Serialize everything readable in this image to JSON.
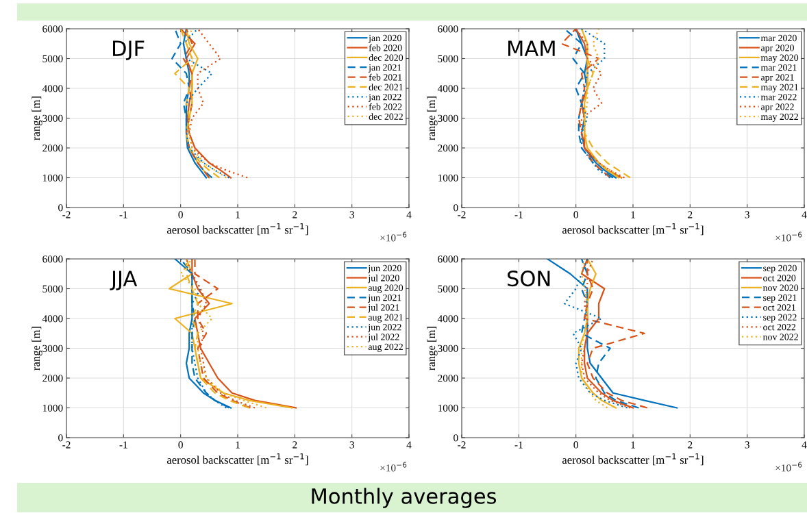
{
  "chart_data": [
    {
      "type": "line",
      "xlabel": "aerosol backscatter [m$^{−1}$ sr$^{−1}$]",
      "ylabel": "range [m]",
      "annotations": [
        "DJF",
        "×10$^{−6}$"
      ],
      "xlim": [
        -2,
        4
      ],
      "xticks": [
        -2,
        -1,
        0,
        1,
        2,
        3,
        4
      ],
      "ylim": [
        0,
        6000
      ],
      "yticks": [
        0,
        1000,
        2000,
        3000,
        4000,
        5000,
        6000
      ],
      "grid": true,
      "legend": "top right",
      "series": [
        {
          "name": "jan 2020",
          "color": "#0072bd",
          "line_style": "solid",
          "x": [
            0.45,
            0.35,
            0.25,
            0.12,
            0.1,
            0.1,
            0.1,
            0.15,
            0.15,
            0.1,
            0.05,
            0.1
          ],
          "values": [
            1000,
            1250,
            1500,
            2000,
            2500,
            3000,
            3500,
            4000,
            4500,
            5000,
            5500,
            6000
          ]
        },
        {
          "name": "feb 2020",
          "color": "#d95319",
          "line_style": "solid",
          "x": [
            0.88,
            0.7,
            0.5,
            0.25,
            0.15,
            0.12,
            0.15,
            0.2,
            0.2,
            0.1,
            0.25,
            0.0
          ],
          "values": [
            1000,
            1250,
            1500,
            2000,
            2500,
            3000,
            3500,
            4000,
            4500,
            5000,
            5500,
            6000
          ]
        },
        {
          "name": "dec 2020",
          "color": "#edb120",
          "line_style": "solid",
          "x": [
            0.5,
            0.4,
            0.3,
            0.15,
            0.1,
            0.15,
            0.2,
            0.2,
            0.2,
            0.3,
            0.15,
            0.1
          ],
          "values": [
            1000,
            1250,
            1500,
            2000,
            2500,
            3000,
            3500,
            4000,
            4500,
            5000,
            5500,
            6000
          ]
        },
        {
          "name": "jan 2021",
          "color": "#0072bd",
          "line_style": "dashed",
          "x": [
            0.55,
            0.4,
            0.3,
            0.15,
            0.1,
            0.1,
            0.05,
            0.15,
            0.1,
            -0.15,
            0.0,
            -0.1
          ],
          "values": [
            1000,
            1250,
            1500,
            2000,
            2500,
            3000,
            3500,
            4000,
            4500,
            5000,
            5500,
            6000
          ]
        },
        {
          "name": "feb 2021",
          "color": "#d95319",
          "line_style": "dashed",
          "x": [
            0.5,
            0.4,
            0.3,
            0.15,
            0.1,
            0.15,
            0.2,
            0.15,
            0.2,
            0.05,
            0.2,
            0.1
          ],
          "values": [
            1000,
            1250,
            1500,
            2000,
            2500,
            3000,
            3500,
            4000,
            4500,
            5000,
            5500,
            6000
          ]
        },
        {
          "name": "dec 2021",
          "color": "#edb120",
          "line_style": "dashed",
          "x": [
            0.68,
            0.5,
            0.35,
            0.15,
            0.1,
            0.15,
            0.1,
            0.15,
            -0.1,
            0.2,
            0.1,
            0.0
          ],
          "values": [
            1000,
            1250,
            1500,
            2000,
            2500,
            3000,
            3500,
            4000,
            4500,
            5000,
            5500,
            6000
          ]
        },
        {
          "name": "jan 2022",
          "color": "#0072bd",
          "line_style": "dotted",
          "x": [
            0.85,
            0.6,
            0.4,
            0.15,
            0.1,
            0.1,
            0.1,
            0.3,
            0.55,
            0.1,
            0.05,
            0.3
          ],
          "values": [
            1000,
            1250,
            1500,
            2000,
            2500,
            3000,
            3500,
            4000,
            4500,
            5000,
            5500,
            6000
          ]
        },
        {
          "name": "feb 2022",
          "color": "#d95319",
          "line_style": "dotted",
          "x": [
            1.17,
            0.8,
            0.5,
            0.2,
            0.15,
            0.2,
            0.4,
            0.3,
            0.3,
            0.7,
            0.5,
            0.3
          ],
          "values": [
            1000,
            1250,
            1500,
            2000,
            2500,
            3000,
            3500,
            4000,
            4500,
            5000,
            5500,
            6000
          ]
        },
        {
          "name": "dec 2022",
          "color": "#edb120",
          "line_style": "dotted",
          "x": [
            0.8,
            0.6,
            0.4,
            0.2,
            0.15,
            0.15,
            0.2,
            0.2,
            0.2,
            0.2,
            0.1,
            0.2
          ],
          "values": [
            1000,
            1250,
            1500,
            2000,
            2500,
            3000,
            3500,
            4000,
            4500,
            5000,
            5500,
            6000
          ]
        }
      ]
    },
    {
      "type": "line",
      "xlabel": "aerosol backscatter [m$^{−1}$ sr$^{−1}$]",
      "ylabel": "range [m]",
      "annotations": [
        "MAM",
        "×10$^{−6}$"
      ],
      "xlim": [
        -2,
        4
      ],
      "xticks": [
        -2,
        -1,
        0,
        1,
        2,
        3,
        4
      ],
      "ylim": [
        0,
        6000
      ],
      "yticks": [
        0,
        1000,
        2000,
        3000,
        4000,
        5000,
        6000
      ],
      "grid": true,
      "legend": "top right",
      "series": [
        {
          "name": "mar 2020",
          "color": "#0072bd",
          "line_style": "solid",
          "x": [
            0.7,
            0.5,
            0.35,
            0.15,
            0.1,
            0.15,
            0.1,
            0.2,
            0.15,
            0.2,
            0.1,
            0.0
          ],
          "values": [
            1000,
            1250,
            1500,
            2000,
            2500,
            3000,
            3500,
            4000,
            4500,
            5000,
            5500,
            6000
          ]
        },
        {
          "name": "apr 2020",
          "color": "#d95319",
          "line_style": "solid",
          "x": [
            0.8,
            0.55,
            0.4,
            0.15,
            0.15,
            0.15,
            0.1,
            0.2,
            0.2,
            0.2,
            0.15,
            0.0
          ],
          "values": [
            1000,
            1250,
            1500,
            2000,
            2500,
            3000,
            3500,
            4000,
            4500,
            5000,
            5500,
            6000
          ]
        },
        {
          "name": "may 2020",
          "color": "#edb120",
          "line_style": "solid",
          "x": [
            0.75,
            0.55,
            0.4,
            0.2,
            0.15,
            0.15,
            0.15,
            0.2,
            0.2,
            0.2,
            0.2,
            0.1
          ],
          "values": [
            1000,
            1250,
            1500,
            2000,
            2500,
            3000,
            3500,
            4000,
            4500,
            5000,
            5500,
            6000
          ]
        },
        {
          "name": "mar 2021",
          "color": "#0072bd",
          "line_style": "dashed",
          "x": [
            0.65,
            0.45,
            0.3,
            0.1,
            0.05,
            0.05,
            0.1,
            0.0,
            0.15,
            -0.05,
            0.1,
            -0.2
          ],
          "values": [
            1000,
            1250,
            1500,
            2000,
            2500,
            3000,
            3500,
            4000,
            4500,
            5000,
            5500,
            6000
          ]
        },
        {
          "name": "apr 2021",
          "color": "#d95319",
          "line_style": "dashed",
          "x": [
            0.6,
            0.45,
            0.3,
            0.15,
            0.1,
            0.05,
            0.1,
            0.15,
            0.1,
            0.4,
            -0.25,
            0.0
          ],
          "values": [
            1000,
            1250,
            1500,
            2000,
            2500,
            3000,
            3500,
            4000,
            4500,
            5000,
            5500,
            6000
          ]
        },
        {
          "name": "may 2021",
          "color": "#edb120",
          "line_style": "dashed",
          "x": [
            0.95,
            0.75,
            0.55,
            0.3,
            0.15,
            0.15,
            0.15,
            0.2,
            0.3,
            0.2,
            0.2,
            0.1
          ],
          "values": [
            1000,
            1250,
            1500,
            2000,
            2500,
            3000,
            3500,
            4000,
            4500,
            5000,
            5500,
            6000
          ]
        },
        {
          "name": "mar 2022",
          "color": "#0072bd",
          "line_style": "dotted",
          "x": [
            0.6,
            0.4,
            0.3,
            0.1,
            0.1,
            0.2,
            0.1,
            0.15,
            0.2,
            0.5,
            0.5,
            0.1
          ],
          "values": [
            1000,
            1250,
            1500,
            2000,
            2500,
            3000,
            3500,
            4000,
            4500,
            5000,
            5500,
            6000
          ]
        },
        {
          "name": "apr 2022",
          "color": "#d95319",
          "line_style": "dotted",
          "x": [
            0.85,
            0.6,
            0.4,
            0.15,
            0.1,
            0.1,
            0.45,
            0.3,
            0.45,
            0.2,
            0.2,
            0.0
          ],
          "values": [
            1000,
            1250,
            1500,
            2000,
            2500,
            3000,
            3500,
            4000,
            4500,
            5000,
            5500,
            6000
          ]
        },
        {
          "name": "may 2022",
          "color": "#edb120",
          "line_style": "dotted",
          "x": [
            0.8,
            0.6,
            0.4,
            0.2,
            0.15,
            0.15,
            0.2,
            0.2,
            0.3,
            0.4,
            0.3,
            0.4
          ],
          "values": [
            1000,
            1250,
            1500,
            2000,
            2500,
            3000,
            3500,
            4000,
            4500,
            5000,
            5500,
            6000
          ]
        }
      ]
    },
    {
      "type": "line",
      "xlabel": "aerosol backscatter [m$^{−1}$ sr$^{−1}$]",
      "ylabel": "range [m]",
      "annotations": [
        "JJA",
        "×10$^{−6}$"
      ],
      "xlim": [
        -2,
        4
      ],
      "xticks": [
        -2,
        -1,
        0,
        1,
        2,
        3,
        4
      ],
      "ylim": [
        0,
        6000
      ],
      "yticks": [
        0,
        1000,
        2000,
        3000,
        4000,
        5000,
        6000
      ],
      "grid": true,
      "legend": "top right",
      "series": [
        {
          "name": "jun 2020",
          "color": "#0072bd",
          "line_style": "solid",
          "x": [
            0.88,
            0.6,
            0.4,
            0.15,
            0.1,
            0.15,
            0.15,
            0.2,
            0.2,
            0.2,
            0.2,
            -0.1
          ],
          "values": [
            1000,
            1250,
            1500,
            2000,
            2500,
            3000,
            3500,
            4000,
            4500,
            5000,
            5500,
            6000
          ]
        },
        {
          "name": "jul 2020",
          "color": "#d95319",
          "line_style": "solid",
          "x": [
            2.02,
            1.3,
            0.9,
            0.65,
            0.5,
            0.35,
            0.3,
            0.25,
            0.5,
            0.3,
            0.2,
            0.2
          ],
          "values": [
            1000,
            1250,
            1500,
            2000,
            2500,
            3000,
            3500,
            4000,
            4500,
            5000,
            5500,
            6000
          ]
        },
        {
          "name": "aug 2020",
          "color": "#edb120",
          "line_style": "solid",
          "x": [
            1.95,
            1.2,
            0.75,
            0.35,
            0.3,
            0.25,
            0.2,
            -0.1,
            0.9,
            -0.2,
            0.2,
            0.1
          ],
          "values": [
            1000,
            1250,
            1500,
            2000,
            2500,
            3000,
            3500,
            4000,
            4500,
            5000,
            5500,
            6000
          ]
        },
        {
          "name": "jun 2021",
          "color": "#0072bd",
          "line_style": "dashed",
          "x": [
            0.85,
            0.6,
            0.45,
            0.25,
            0.2,
            0.2,
            0.2,
            0.25,
            0.2,
            0.2,
            0.2,
            0.0
          ],
          "values": [
            1000,
            1250,
            1500,
            2000,
            2500,
            3000,
            3500,
            4000,
            4500,
            5000,
            5500,
            6000
          ]
        },
        {
          "name": "jul 2021",
          "color": "#d95319",
          "line_style": "dashed",
          "x": [
            1.22,
            0.9,
            0.65,
            0.4,
            0.35,
            0.3,
            0.45,
            0.3,
            0.3,
            0.65,
            0.25,
            0.25
          ],
          "values": [
            1000,
            1250,
            1500,
            2000,
            2500,
            3000,
            3500,
            4000,
            4500,
            5000,
            5500,
            6000
          ]
        },
        {
          "name": "aug 2021",
          "color": "#edb120",
          "line_style": "dashed",
          "x": [
            1.2,
            0.85,
            0.6,
            0.35,
            0.3,
            0.25,
            0.3,
            0.2,
            0.3,
            0.2,
            0.1,
            0.1
          ],
          "values": [
            1000,
            1250,
            1500,
            2000,
            2500,
            3000,
            3500,
            4000,
            4500,
            5000,
            5500,
            6000
          ]
        },
        {
          "name": "jun 2022",
          "color": "#0072bd",
          "line_style": "dotted",
          "x": [
            0.8,
            0.6,
            0.45,
            0.3,
            0.25,
            0.2,
            0.2,
            0.2,
            0.2,
            0.35,
            0.2,
            0.0
          ],
          "values": [
            1000,
            1250,
            1500,
            2000,
            2500,
            3000,
            3500,
            4000,
            4500,
            5000,
            5500,
            6000
          ]
        },
        {
          "name": "jul 2022",
          "color": "#d95319",
          "line_style": "dotted",
          "x": [
            1.3,
            0.95,
            0.7,
            0.45,
            0.4,
            0.35,
            0.4,
            0.3,
            0.45,
            0.35,
            0.2,
            0.1
          ],
          "values": [
            1000,
            1250,
            1500,
            2000,
            2500,
            3000,
            3500,
            4000,
            4500,
            5000,
            5500,
            6000
          ]
        },
        {
          "name": "aug 2022",
          "color": "#edb120",
          "line_style": "dotted",
          "x": [
            1.5,
            1.1,
            0.75,
            0.45,
            0.35,
            0.3,
            0.3,
            0.55,
            0.3,
            0.25,
            0.0,
            0.2
          ],
          "values": [
            1000,
            1250,
            1500,
            2000,
            2500,
            3000,
            3500,
            4000,
            4500,
            5000,
            5500,
            6000
          ]
        }
      ]
    },
    {
      "type": "line",
      "xlabel": "aerosol backscatter [m$^{−1}$ sr$^{−1}$]",
      "ylabel": "range [m]",
      "annotations": [
        "SON",
        "×10$^{−6}$",
        "Monthly averages"
      ],
      "xlim": [
        -2,
        4
      ],
      "xticks": [
        -2,
        -1,
        0,
        1,
        2,
        3,
        4
      ],
      "ylim": [
        0,
        6000
      ],
      "yticks": [
        0,
        1000,
        2000,
        3000,
        4000,
        5000,
        6000
      ],
      "grid": true,
      "legend": "top right",
      "series": [
        {
          "name": "sep 2020",
          "color": "#0072bd",
          "line_style": "solid",
          "x": [
            1.77,
            1.2,
            0.65,
            0.45,
            0.25,
            0.2,
            0.2,
            0.2,
            0.2,
            0.2,
            -0.1,
            -0.5
          ],
          "values": [
            1000,
            1250,
            1500,
            2000,
            2500,
            3000,
            3500,
            4000,
            4500,
            5000,
            5500,
            6000
          ]
        },
        {
          "name": "oct 2020",
          "color": "#d95319",
          "line_style": "solid",
          "x": [
            1.0,
            0.65,
            0.45,
            0.2,
            0.15,
            0.15,
            0.2,
            0.4,
            0.4,
            0.5,
            0.1,
            0.2
          ],
          "values": [
            1000,
            1250,
            1500,
            2000,
            2500,
            3000,
            3500,
            4000,
            4500,
            5000,
            5500,
            6000
          ]
        },
        {
          "name": "nov 2020",
          "color": "#edb120",
          "line_style": "solid",
          "x": [
            0.7,
            0.45,
            0.3,
            0.1,
            0.05,
            0.05,
            0.15,
            0.2,
            0.2,
            0.25,
            0.35,
            0.2
          ],
          "values": [
            1000,
            1250,
            1500,
            2000,
            2500,
            3000,
            3500,
            4000,
            4500,
            5000,
            5500,
            6000
          ]
        },
        {
          "name": "sep 2021",
          "color": "#0072bd",
          "line_style": "dashed",
          "x": [
            1.1,
            0.7,
            0.5,
            0.35,
            0.4,
            0.6,
            0.1,
            0.15,
            0.2,
            0.1,
            0.2,
            0.1
          ],
          "values": [
            1000,
            1250,
            1500,
            2000,
            2500,
            3000,
            3500,
            4000,
            4500,
            5000,
            5500,
            6000
          ]
        },
        {
          "name": "oct 2021",
          "color": "#d95319",
          "line_style": "dashed",
          "x": [
            1.25,
            0.8,
            0.55,
            0.3,
            0.2,
            0.3,
            1.2,
            0.15,
            0.2,
            0.3,
            0.2,
            0.2
          ],
          "values": [
            1000,
            1250,
            1500,
            2000,
            2500,
            3000,
            3500,
            4000,
            4500,
            5000,
            5500,
            6000
          ]
        },
        {
          "name": "sep 2022",
          "color": "#0072bd",
          "line_style": "dotted",
          "x": [
            0.9,
            0.5,
            0.25,
            0.05,
            0.0,
            0.1,
            -0.05,
            0.45,
            -0.2,
            0.0,
            0.1,
            0.2
          ],
          "values": [
            1000,
            1250,
            1500,
            2000,
            2500,
            3000,
            3500,
            4000,
            4500,
            5000,
            5500,
            6000
          ]
        },
        {
          "name": "oct 2022",
          "color": "#d95319",
          "line_style": "dotted",
          "x": [
            0.95,
            0.6,
            0.4,
            0.15,
            0.1,
            0.15,
            0.2,
            0.2,
            0.15,
            0.2,
            0.2,
            0.3
          ],
          "values": [
            1000,
            1250,
            1500,
            2000,
            2500,
            3000,
            3500,
            4000,
            4500,
            5000,
            5500,
            6000
          ]
        },
        {
          "name": "nov 2022",
          "color": "#edb120",
          "line_style": "dotted",
          "x": [
            0.55,
            0.35,
            0.25,
            0.1,
            0.1,
            0.1,
            0.15,
            0.2,
            0.2,
            0.15,
            0.1,
            0.15
          ],
          "values": [
            1000,
            1250,
            1500,
            2000,
            2500,
            3000,
            3500,
            4000,
            4500,
            5000,
            5500,
            6000
          ]
        }
      ]
    }
  ]
}
